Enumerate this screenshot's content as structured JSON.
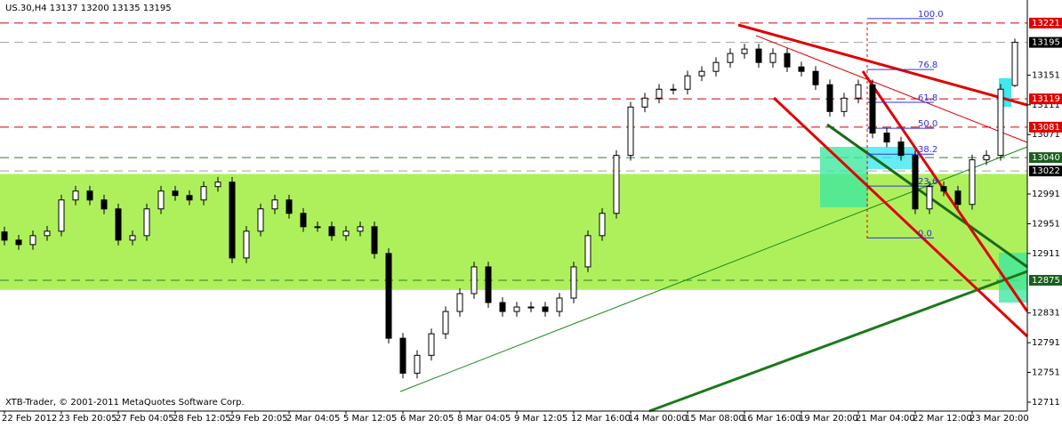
{
  "chart_data": {
    "type": "candlestick",
    "title": "US.30,H4  13137 13200 13135 13195",
    "footer": "XTB-Trader, © 2001-2011 MetaQuotes Software Corp.",
    "categories": [
      "22 Feb 2012",
      null,
      null,
      null,
      "23 Feb 20:05",
      null,
      null,
      null,
      "27 Feb 04:05",
      null,
      null,
      null,
      "28 Feb 12:05",
      null,
      null,
      null,
      "29 Feb 20:05",
      null,
      null,
      null,
      "2 Mar 04:05",
      null,
      null,
      null,
      "5 Mar 12:05",
      null,
      null,
      null,
      "6 Mar 20:05",
      null,
      null,
      null,
      "8 Mar 04:05",
      null,
      null,
      null,
      "9 Mar 12:05",
      null,
      null,
      null,
      "12 Mar 16:00",
      null,
      null,
      null,
      "14 Mar 00:00",
      null,
      null,
      null,
      "15 Mar 08:00",
      null,
      null,
      null,
      "16 Mar 16:00",
      null,
      null,
      null,
      "19 Mar 20:00",
      null,
      null,
      null,
      "21 Mar 04:00",
      null,
      null,
      null,
      "22 Mar 12:00",
      null,
      null,
      null,
      "23 Mar 20:00",
      null,
      null,
      null
    ],
    "open": [
      12940,
      12929,
      12923,
      12935,
      12941,
      12983,
      12995,
      12983,
      12971,
      12929,
      12935,
      12971,
      12995,
      12989,
      12983,
      13001,
      13007,
      12905,
      12941,
      12971,
      12983,
      12965,
      12947,
      12947,
      12935,
      12941,
      12947,
      12911,
      12797,
      12750,
      12774,
      12803,
      12833,
      12857,
      12893,
      12845,
      12833,
      12839,
      12839,
      12833,
      12851,
      12893,
      12935,
      12965,
      13043,
      13108,
      13120,
      13132,
      13132,
      13150,
      13156,
      13168,
      13180,
      13186,
      13168,
      13180,
      13162,
      13156,
      13138,
      13102,
      13120,
      13138,
      13073,
      13061,
      13043,
      12971,
      13001,
      12995,
      12977,
      13037,
      13043,
      13137
    ],
    "high": [
      12947,
      12936,
      12942,
      12948,
      12990,
      13002,
      13002,
      12990,
      12978,
      12942,
      12978,
      13002,
      13002,
      12996,
      13008,
      13014,
      13014,
      12948,
      12978,
      12990,
      12990,
      12972,
      12954,
      12954,
      12948,
      12954,
      12954,
      12918,
      12804,
      12781,
      12810,
      12840,
      12864,
      12900,
      12900,
      12852,
      12846,
      12846,
      12846,
      12858,
      12900,
      12942,
      12972,
      13050,
      13115,
      13127,
      13139,
      13139,
      13157,
      13163,
      13175,
      13187,
      13193,
      13193,
      13187,
      13187,
      13169,
      13163,
      13145,
      13127,
      13145,
      13145,
      13080,
      13068,
      13050,
      13008,
      13008,
      13002,
      13044,
      13050,
      13139,
      13200
    ],
    "low": [
      12922,
      12916,
      12916,
      12928,
      12934,
      12976,
      12976,
      12964,
      12922,
      12922,
      12928,
      12964,
      12982,
      12976,
      12976,
      12994,
      12898,
      12898,
      12934,
      12964,
      12958,
      12940,
      12940,
      12928,
      12928,
      12934,
      12904,
      12790,
      12743,
      12743,
      12767,
      12796,
      12826,
      12850,
      12838,
      12826,
      12826,
      12832,
      12826,
      12826,
      12844,
      12886,
      12928,
      12958,
      13036,
      13101,
      13113,
      13125,
      13125,
      13143,
      13149,
      13161,
      13173,
      13161,
      13161,
      13155,
      13149,
      13131,
      13095,
      13095,
      13113,
      13066,
      13054,
      13036,
      12964,
      12964,
      12988,
      12970,
      12970,
      13030,
      13036,
      13135
    ],
    "close": [
      12929,
      12923,
      12935,
      12941,
      12983,
      12995,
      12983,
      12971,
      12929,
      12935,
      12971,
      12995,
      12989,
      12983,
      13001,
      13007,
      12905,
      12941,
      12971,
      12983,
      12965,
      12947,
      12947,
      12935,
      12941,
      12947,
      12911,
      12797,
      12750,
      12774,
      12803,
      12833,
      12857,
      12893,
      12845,
      12833,
      12839,
      12839,
      12833,
      12851,
      12893,
      12935,
      12965,
      13043,
      13108,
      13120,
      13132,
      13132,
      13150,
      13156,
      13168,
      13180,
      13186,
      13168,
      13180,
      13162,
      13156,
      13138,
      13102,
      13120,
      13138,
      13073,
      13061,
      13043,
      12971,
      13001,
      12995,
      12977,
      13037,
      13043,
      13132,
      13195
    ],
    "ylim": [
      12699,
      13252
    ],
    "yticks": [
      12711,
      12751,
      12791,
      12831,
      12911,
      12951,
      12991,
      13071,
      13111,
      13151
    ],
    "zone": {
      "from": 12862,
      "to": 13018,
      "color": "#aef05c"
    },
    "levels": [
      {
        "value": 13221,
        "color": "#d00000",
        "label_bg": "#e00000"
      },
      {
        "value": 13195,
        "color": "#a0a0a0",
        "label_bg": "#000000"
      },
      {
        "value": 13119,
        "color": "#d00000",
        "label_bg": "#e00000"
      },
      {
        "value": 13081,
        "color": "#d00000",
        "label_bg": "#e00000"
      },
      {
        "value": 13040,
        "color": "#2e7d32",
        "label_bg": "#1b5e20"
      },
      {
        "value": 13022,
        "color": "#a0a0a0",
        "label_bg": "#000000"
      },
      {
        "value": 12875,
        "color": "#2e7d32",
        "label_bg": "#1b5e20"
      }
    ],
    "fib": {
      "low": 12932,
      "high": 13227,
      "levels": [
        {
          "value": 100,
          "label": "100.0"
        },
        76.8,
        61.8,
        {
          "value": 50,
          "label": "50.0"
        },
        38.2,
        23.6,
        {
          "value": 0,
          "label": "0.0"
        }
      ]
    },
    "up_color": "#ffffff",
    "down_color": "#000000"
  }
}
